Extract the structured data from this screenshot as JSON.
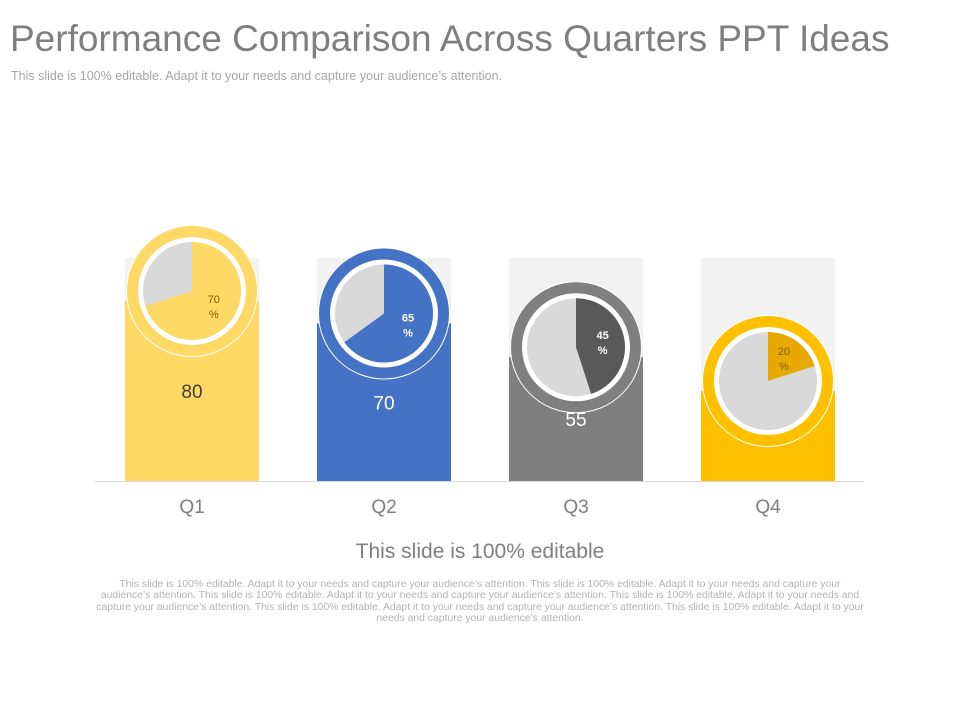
{
  "header": {
    "title": "Performance Comparison Across Quarters PPT Ideas",
    "subtitle": "This slide is 100% editable. Adapt it to your needs and capture your audience’s attention."
  },
  "chart_data": {
    "type": "bar",
    "categories": [
      "Q1",
      "Q2",
      "Q3",
      "Q4"
    ],
    "values": [
      80,
      70,
      55,
      40
    ],
    "ylim": [
      0,
      100
    ],
    "pie_percent_labels": [
      "70 %",
      "65 %",
      "45 %",
      "20 %"
    ],
    "pie_values": [
      70,
      65,
      45,
      20
    ],
    "colors": [
      "#ffd966",
      "#4472c4",
      "#7f7f7f",
      "#ffc000"
    ],
    "pie_remainder_color": "#d9d9d9",
    "track_color": "#f2f2f2",
    "grid": false,
    "legend": "none"
  },
  "caption": {
    "title": "This slide is 100% editable",
    "body": "This slide is 100% editable. Adapt it to your needs and capture your audience’s attention. This slide is 100% editable. Adapt it to your needs and capture your audience’s attention. This slide is 100% editable. Adapt it to your needs and capture your audience’s attention. This slide is 100% editable. Adapt it to your needs and capture your audience’s attention. This slide is 100% editable. Adapt it to your needs and capture your audience’s attention. This slide is 100% editable. Adapt it to your needs and capture your audience’s attention."
  }
}
